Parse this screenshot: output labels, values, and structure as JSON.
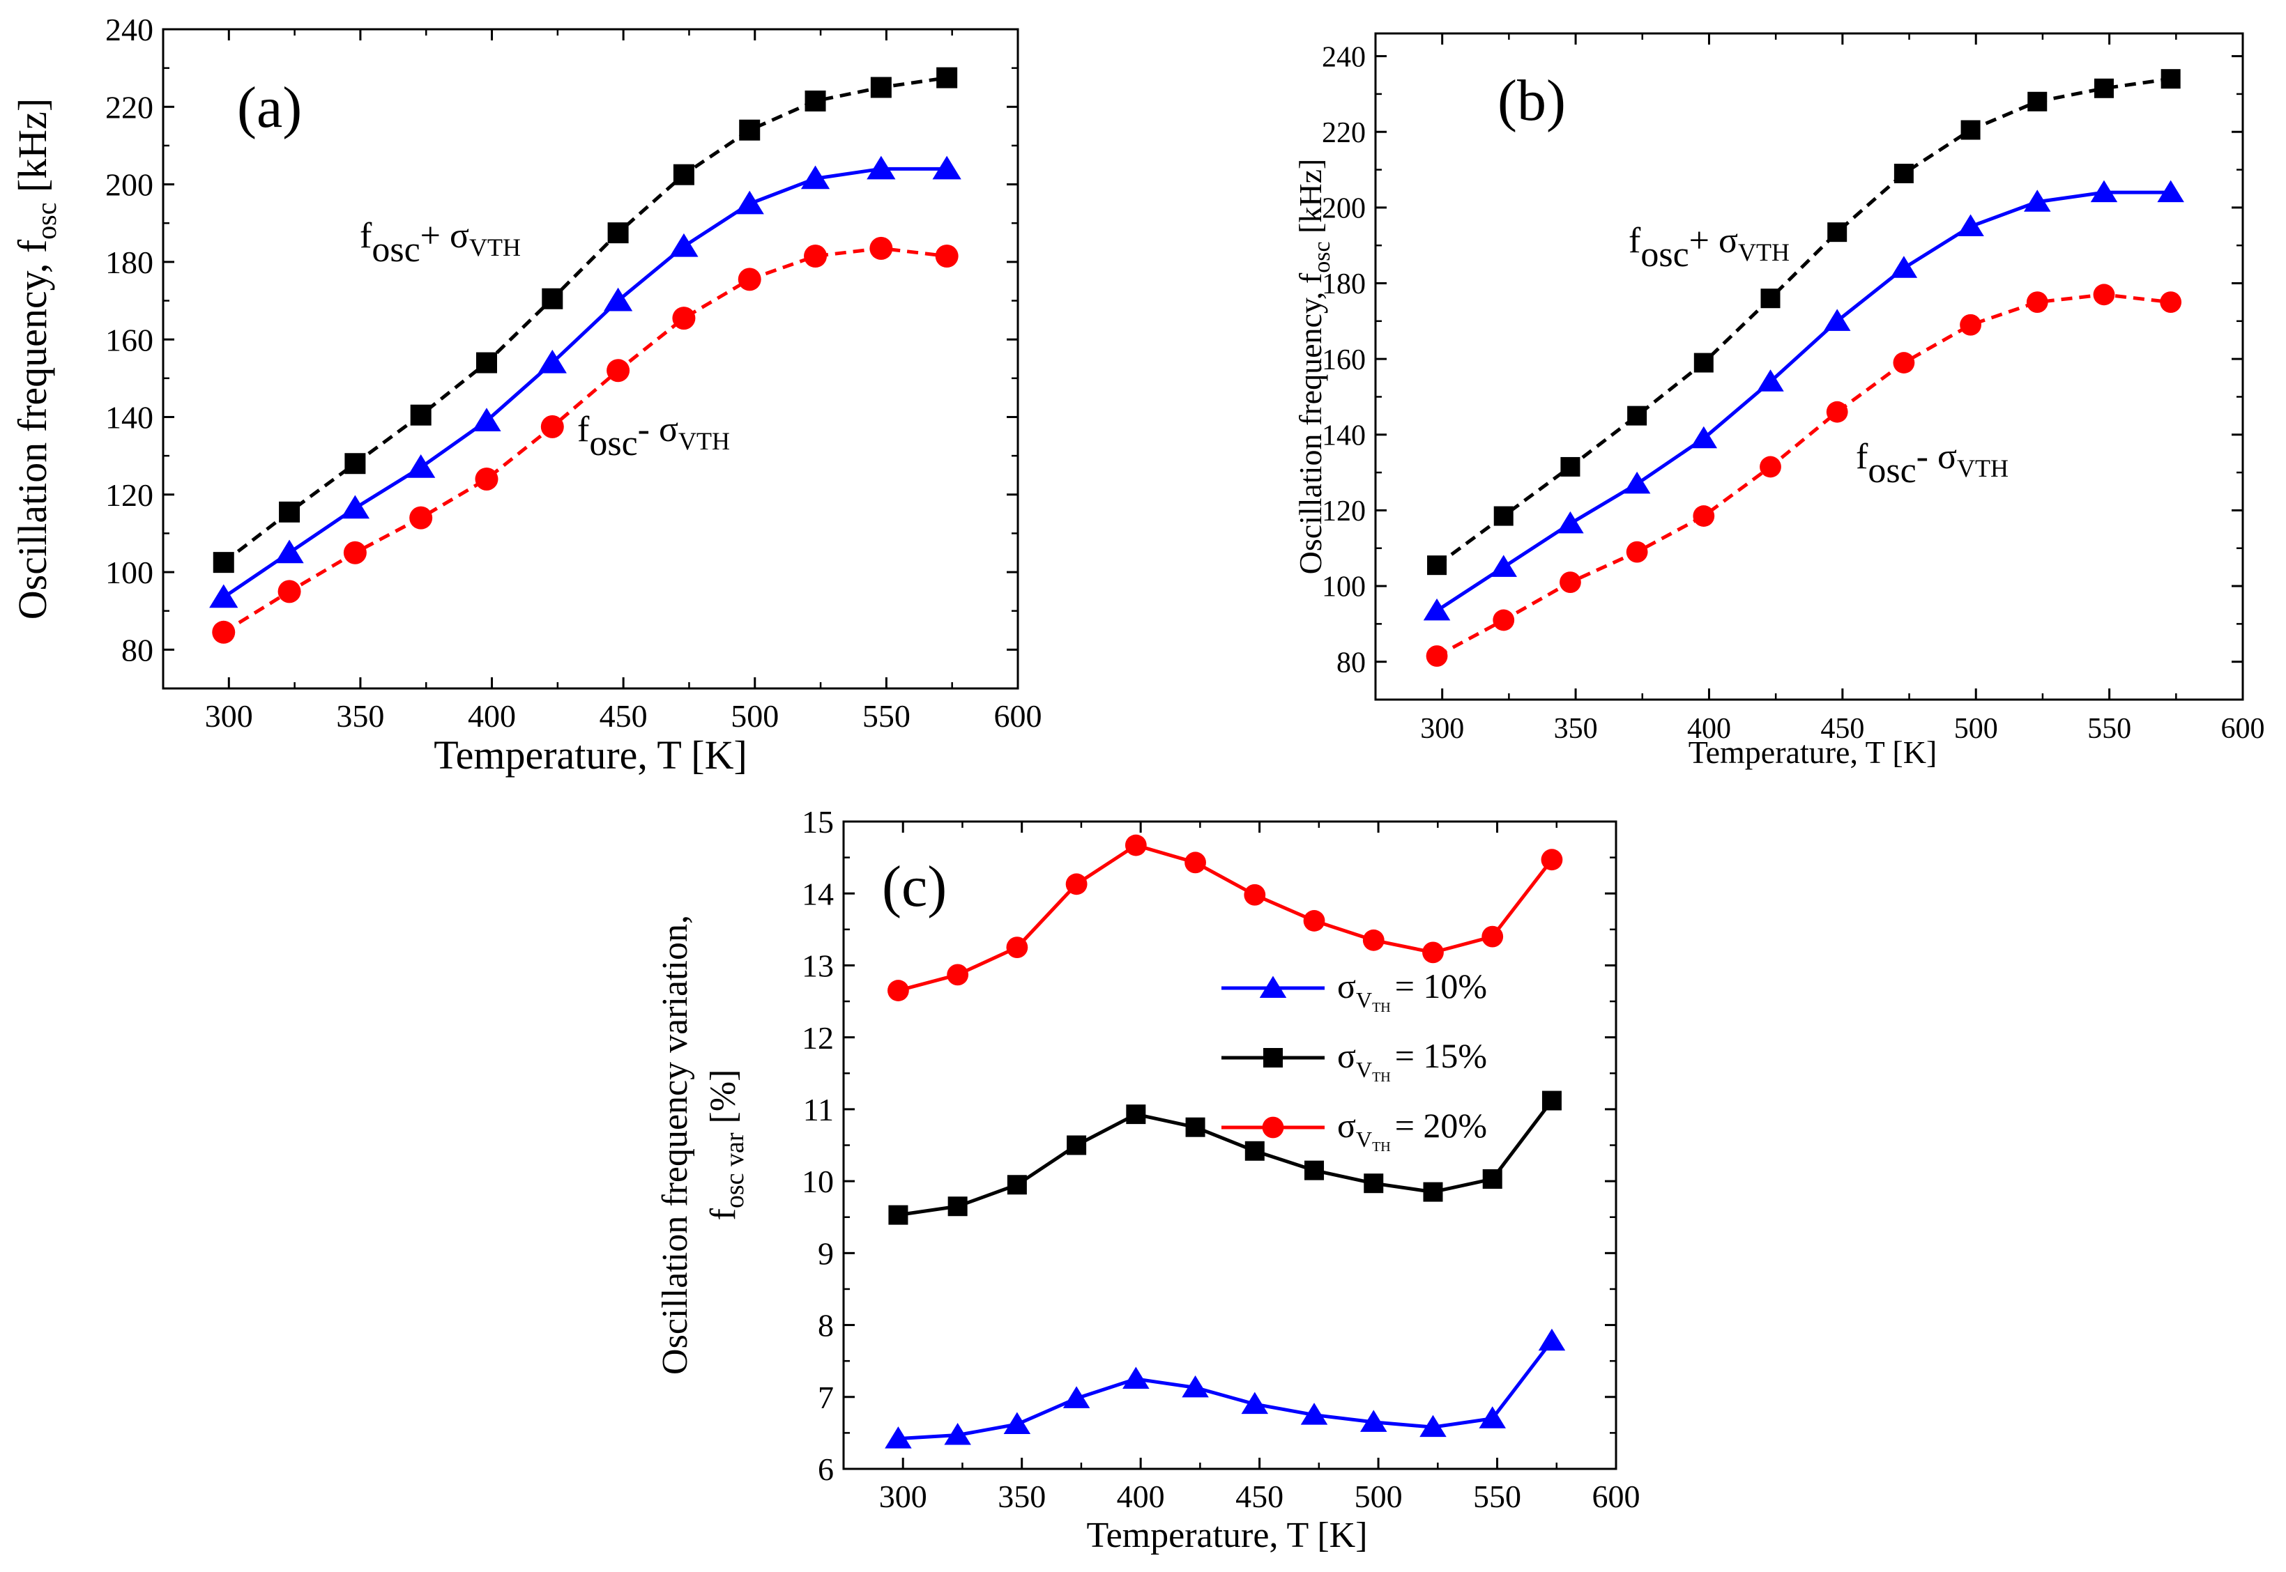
{
  "chart_data": [
    {
      "panel": "a",
      "type": "line",
      "panel_label": "(a)",
      "xlabel": "Temperature, T [K]",
      "ylabel": "Oscillation frequency, f",
      "ylabel_sub": "osc",
      "ylabel_unit": " [kHz]",
      "xlim": [
        275,
        600
      ],
      "ylim": [
        70,
        240
      ],
      "xticks": [
        300,
        350,
        400,
        450,
        500,
        550,
        600
      ],
      "yticks": [
        80,
        100,
        120,
        140,
        160,
        180,
        200,
        220,
        240
      ],
      "x": [
        298,
        323,
        348,
        373,
        398,
        423,
        448,
        473,
        498,
        523,
        548,
        573
      ],
      "series": [
        {
          "name": "f_osc + σ_VTH",
          "marker": "square",
          "color": "#000000",
          "dashed": true,
          "values": [
            102.5,
            115.5,
            128,
            140.5,
            154,
            170.5,
            187.5,
            202.5,
            214,
            221.5,
            225,
            227.5
          ]
        },
        {
          "name": "f_osc",
          "marker": "triangle",
          "color": "#0000ff",
          "dashed": false,
          "values": [
            93.5,
            105,
            116.5,
            127,
            139,
            154,
            170,
            184,
            195,
            201.5,
            204,
            204
          ]
        },
        {
          "name": "f_osc - σ_VTH",
          "marker": "circle",
          "color": "#ff0000",
          "dashed": true,
          "values": [
            84.5,
            95,
            105,
            114,
            124,
            137.5,
            152,
            165.5,
            175.5,
            181.5,
            183.5,
            181.5
          ]
        }
      ],
      "annotations": [
        {
          "main": "f",
          "sub": "osc",
          "op": "+ σ",
          "sub2": "VTH"
        },
        {
          "main": "f",
          "sub": "osc",
          "op": "- σ",
          "sub2": "VTH"
        }
      ]
    },
    {
      "panel": "b",
      "type": "line",
      "panel_label": "(b)",
      "xlabel": "Temperature, T [K]",
      "ylabel": "Oscillation frequency, f",
      "ylabel_sub": "osc",
      "ylabel_unit": " [kHz]",
      "xlim": [
        275,
        600
      ],
      "ylim": [
        70,
        246
      ],
      "xticks": [
        300,
        350,
        400,
        450,
        500,
        550,
        600
      ],
      "yticks": [
        80,
        100,
        120,
        140,
        160,
        180,
        200,
        220,
        240
      ],
      "x": [
        298,
        323,
        348,
        373,
        398,
        423,
        448,
        473,
        498,
        523,
        548,
        573
      ],
      "series": [
        {
          "name": "f_osc + σ_VTH",
          "marker": "square",
          "color": "#000000",
          "dashed": true,
          "values": [
            105.5,
            118.5,
            131.5,
            145,
            159,
            176,
            193.5,
            209,
            220.5,
            228,
            231.5,
            234
          ]
        },
        {
          "name": "f_osc",
          "marker": "triangle",
          "color": "#0000ff",
          "dashed": false,
          "values": [
            93.5,
            105,
            116.5,
            127,
            139,
            154,
            170,
            184,
            195,
            201.5,
            204,
            204
          ]
        },
        {
          "name": "f_osc - σ_VTH",
          "marker": "circle",
          "color": "#ff0000",
          "dashed": true,
          "values": [
            81.5,
            91,
            101,
            109,
            118.5,
            131.5,
            146,
            159,
            169,
            175,
            177,
            175
          ]
        }
      ],
      "annotations": [
        {
          "main": "f",
          "sub": "osc",
          "op": "+ σ",
          "sub2": "VTH"
        },
        {
          "main": "f",
          "sub": "osc",
          "op": "- σ",
          "sub2": "VTH"
        }
      ]
    },
    {
      "panel": "c",
      "type": "line",
      "panel_label": "(c)",
      "xlabel": "Temperature, T [K]",
      "ylabel_line1": "Oscillation frequency variation,",
      "ylabel_line2": "f",
      "ylabel_sub": "osc var",
      "ylabel_unit": " [%]",
      "xlim": [
        275,
        600
      ],
      "ylim": [
        6,
        15
      ],
      "xticks": [
        300,
        350,
        400,
        450,
        500,
        550,
        600
      ],
      "yticks": [
        6,
        7,
        8,
        9,
        10,
        11,
        12,
        13,
        14,
        15
      ],
      "x": [
        298,
        323,
        348,
        373,
        398,
        423,
        448,
        473,
        498,
        523,
        548,
        573
      ],
      "series": [
        {
          "name": "σ_VTH = 10%",
          "marker": "triangle",
          "color": "#0000ff",
          "values": [
            6.42,
            6.47,
            6.62,
            6.98,
            7.25,
            7.13,
            6.9,
            6.75,
            6.65,
            6.58,
            6.7,
            7.78
          ]
        },
        {
          "name": "σ_VTH = 15%",
          "marker": "square",
          "color": "#000000",
          "values": [
            9.53,
            9.65,
            9.95,
            10.5,
            10.93,
            10.75,
            10.42,
            10.15,
            9.97,
            9.85,
            10.03,
            11.12
          ]
        },
        {
          "name": "σ_VTH = 20%",
          "marker": "circle",
          "color": "#ff0000",
          "values": [
            12.65,
            12.87,
            13.25,
            14.13,
            14.67,
            14.43,
            13.98,
            13.62,
            13.35,
            13.18,
            13.4,
            14.47
          ]
        }
      ],
      "legend": {
        "placement": "center-right",
        "entries": [
          {
            "sigma": "σ",
            "sub": "V",
            "subsub": "TH",
            "text": "= 10%"
          },
          {
            "sigma": "σ",
            "sub": "V",
            "subsub": "TH",
            "text": "= 15%"
          },
          {
            "sigma": "σ",
            "sub": "V",
            "subsub": "TH",
            "text": "= 20%"
          }
        ]
      }
    }
  ]
}
